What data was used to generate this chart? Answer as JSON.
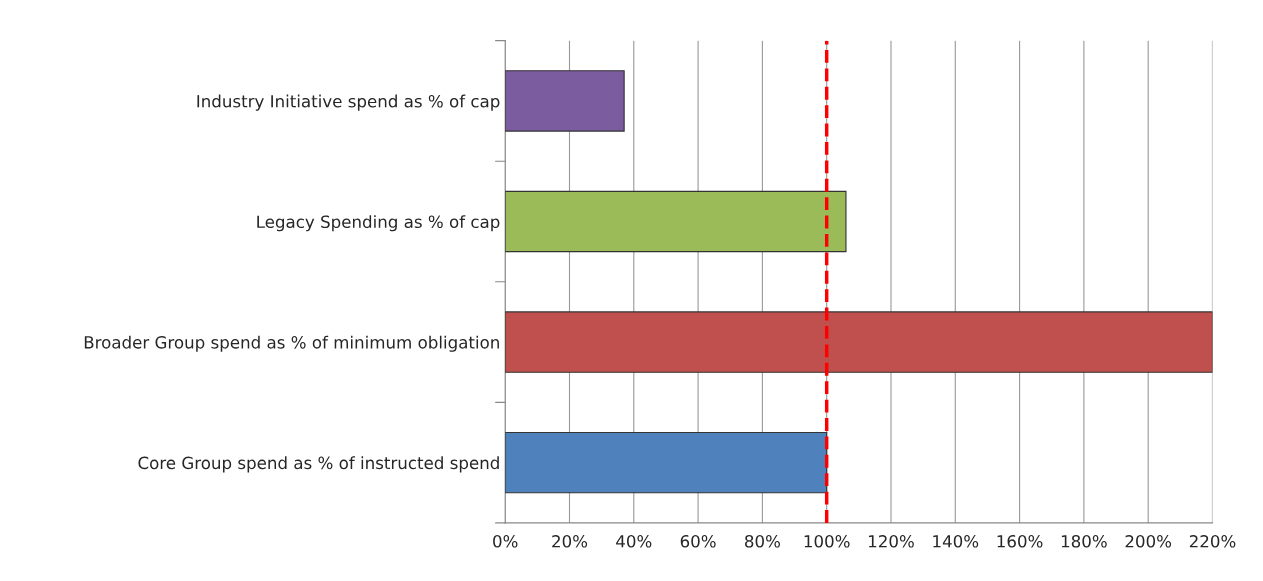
{
  "chart_data": {
    "type": "bar",
    "orientation": "horizontal",
    "categories": [
      "Industry Initiative spend as % of cap",
      "Legacy Spending as % of cap",
      "Broader Group spend as % of minimum obligation",
      "Core Group spend as % of instructed spend"
    ],
    "values": [
      37,
      106,
      220,
      100
    ],
    "colors": [
      "#7b5c9e",
      "#9bbb59",
      "#c0504d",
      "#4f81bd"
    ],
    "xlim": [
      0,
      220
    ],
    "xticks": [
      {
        "value": 0,
        "label": "0%"
      },
      {
        "value": 20,
        "label": "20%"
      },
      {
        "value": 40,
        "label": "40%"
      },
      {
        "value": 60,
        "label": "60%"
      },
      {
        "value": 80,
        "label": "80%"
      },
      {
        "value": 100,
        "label": "100%"
      },
      {
        "value": 120,
        "label": "120%"
      },
      {
        "value": 140,
        "label": "140%"
      },
      {
        "value": 160,
        "label": "160%"
      },
      {
        "value": 180,
        "label": "180%"
      },
      {
        "value": 200,
        "label": "200%"
      },
      {
        "value": 220,
        "label": "220%"
      }
    ],
    "grid": "x",
    "legend": false,
    "ref_lines": [
      {
        "axis": "x",
        "value": 100,
        "color": "#ff0000",
        "line_style": "dashed"
      }
    ]
  }
}
